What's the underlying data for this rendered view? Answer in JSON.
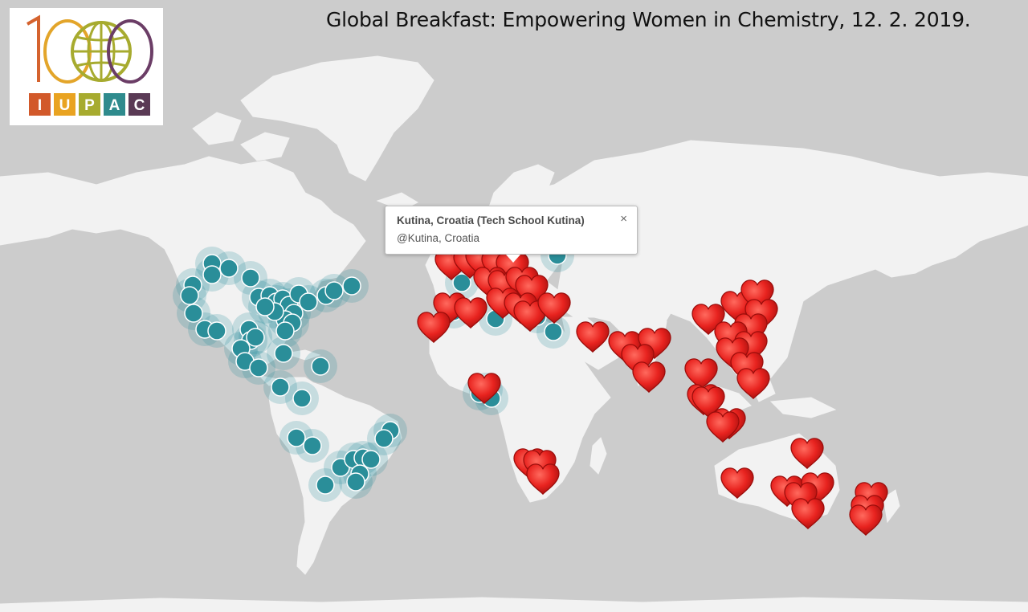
{
  "title": "Global Breakfast: Empowering Women in Chemistry, 12. 2. 2019.",
  "logo": {
    "number": "100",
    "letters": [
      "I",
      "U",
      "P",
      "A",
      "C"
    ],
    "letter_colors": [
      "#d2592a",
      "#e9a321",
      "#a7ab2f",
      "#2f8b8d",
      "#5a3a55"
    ]
  },
  "popup": {
    "title": "Kutina, Croatia (Tech School Kutina)",
    "subtitle": "@Kutina, Croatia",
    "close": "×"
  },
  "colors": {
    "ocean": "#cccccc",
    "land": "#f2f2f2",
    "dot": "#2a8e99",
    "heart": "#e8231f"
  }
}
